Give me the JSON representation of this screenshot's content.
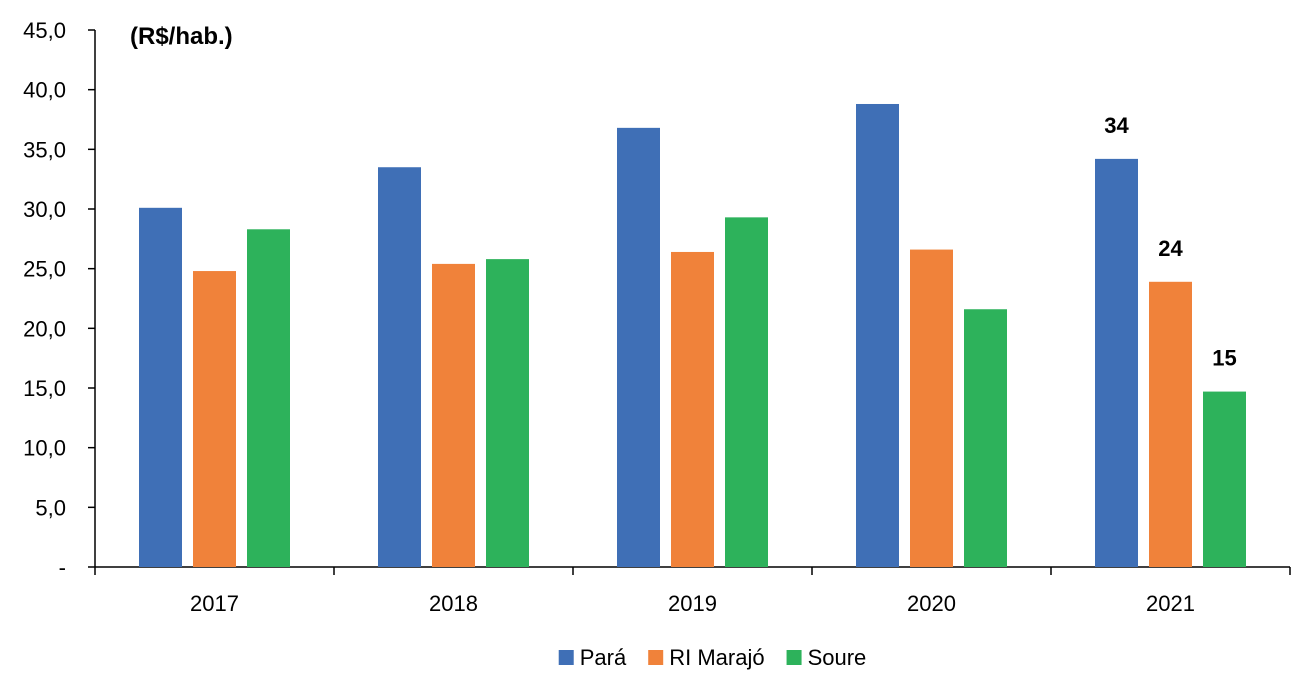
{
  "chart_data": {
    "type": "bar",
    "unit_label": "(R$/hab.)",
    "categories": [
      "2017",
      "2018",
      "2019",
      "2020",
      "2021"
    ],
    "series": [
      {
        "name": "Pará",
        "color": "#3F6FB6",
        "values": [
          30.1,
          33.5,
          36.8,
          38.8,
          34.2
        ]
      },
      {
        "name": "RI Marajó",
        "color": "#F0823A",
        "values": [
          24.8,
          25.4,
          26.4,
          26.6,
          23.9
        ]
      },
      {
        "name": "Soure",
        "color": "#2DB25B",
        "values": [
          28.3,
          25.8,
          29.3,
          21.6,
          14.7
        ]
      }
    ],
    "ylim": [
      0,
      45
    ],
    "yticks": [
      0,
      5,
      10,
      15,
      20,
      25,
      30,
      35,
      40,
      45
    ],
    "ytick_labels": [
      "-",
      "5,0",
      "10,0",
      "15,0",
      "20,0",
      "25,0",
      "30,0",
      "35,0",
      "40,0",
      "45,0"
    ],
    "data_labels": [
      {
        "category": "2021",
        "series": "Pará",
        "text": "34"
      },
      {
        "category": "2021",
        "series": "RI Marajó",
        "text": "24"
      },
      {
        "category": "2021",
        "series": "Soure",
        "text": "15"
      }
    ],
    "grid": false,
    "legend_position": "bottom-center"
  }
}
